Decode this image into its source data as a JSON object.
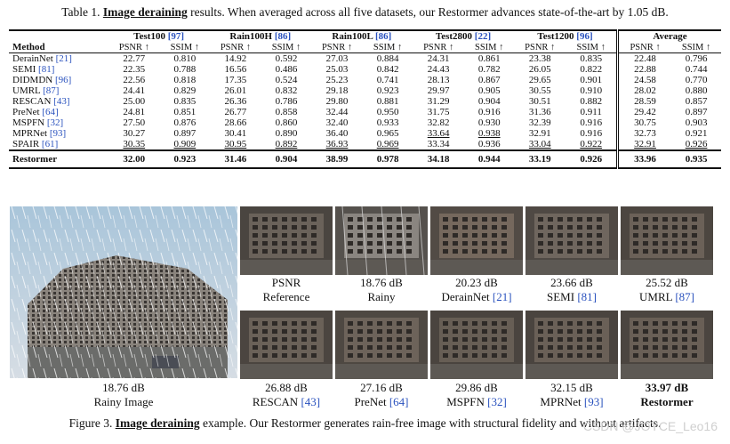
{
  "top_caption": {
    "prefix": "Table 1. ",
    "highlight": "Image deraining",
    "rest": " results. When averaged across all five datasets, our Restormer advances state-of-the-art by 1.05 dB."
  },
  "table": {
    "method_header": "Method",
    "groups": [
      "Test100",
      "Rain100H",
      "Rain100L",
      "Test2800",
      "Test1200",
      "Average"
    ],
    "group_cites": [
      "[97]",
      "[86]",
      "[86]",
      "[22]",
      "[96]",
      ""
    ],
    "sub_psnr": "PSNR ↑",
    "sub_ssim": "SSIM ↑",
    "rows": [
      {
        "method": "DerainNet",
        "cite": "[21]",
        "vals": [
          "22.77",
          "0.810",
          "14.92",
          "0.592",
          "27.03",
          "0.884",
          "24.31",
          "0.861",
          "23.38",
          "0.835",
          "22.48",
          "0.796"
        ]
      },
      {
        "method": "SEMI",
        "cite": "[81]",
        "vals": [
          "22.35",
          "0.788",
          "16.56",
          "0.486",
          "25.03",
          "0.842",
          "24.43",
          "0.782",
          "26.05",
          "0.822",
          "22.88",
          "0.744"
        ]
      },
      {
        "method": "DIDMDN",
        "cite": "[96]",
        "vals": [
          "22.56",
          "0.818",
          "17.35",
          "0.524",
          "25.23",
          "0.741",
          "28.13",
          "0.867",
          "29.65",
          "0.901",
          "24.58",
          "0.770"
        ]
      },
      {
        "method": "UMRL",
        "cite": "[87]",
        "vals": [
          "24.41",
          "0.829",
          "26.01",
          "0.832",
          "29.18",
          "0.923",
          "29.97",
          "0.905",
          "30.55",
          "0.910",
          "28.02",
          "0.880"
        ]
      },
      {
        "method": "RESCAN",
        "cite": "[43]",
        "vals": [
          "25.00",
          "0.835",
          "26.36",
          "0.786",
          "29.80",
          "0.881",
          "31.29",
          "0.904",
          "30.51",
          "0.882",
          "28.59",
          "0.857"
        ]
      },
      {
        "method": "PreNet",
        "cite": "[64]",
        "vals": [
          "24.81",
          "0.851",
          "26.77",
          "0.858",
          "32.44",
          "0.950",
          "31.75",
          "0.916",
          "31.36",
          "0.911",
          "29.42",
          "0.897"
        ]
      },
      {
        "method": "MSPFN",
        "cite": "[32]",
        "vals": [
          "27.50",
          "0.876",
          "28.66",
          "0.860",
          "32.40",
          "0.933",
          "32.82",
          "0.930",
          "32.39",
          "0.916",
          "30.75",
          "0.903"
        ]
      },
      {
        "method": "MPRNet",
        "cite": "[93]",
        "vals": [
          "30.27",
          "0.897",
          "30.41",
          "0.890",
          "36.40",
          "0.965",
          "33.64",
          "0.938",
          "32.91",
          "0.916",
          "32.73",
          "0.921"
        ]
      },
      {
        "method": "SPAIR",
        "cite": "[61]",
        "vals": [
          "30.35",
          "0.909",
          "30.95",
          "0.892",
          "36.93",
          "0.969",
          "33.34",
          "0.936",
          "33.04",
          "0.922",
          "32.91",
          "0.926"
        ]
      }
    ],
    "restormer": {
      "method": "Restormer",
      "vals": [
        "32.00",
        "0.923",
        "31.46",
        "0.904",
        "38.99",
        "0.978",
        "34.18",
        "0.944",
        "33.19",
        "0.926",
        "33.96",
        "0.935"
      ]
    }
  },
  "figure": {
    "big_label_value": "18.76 dB",
    "big_label_name": "Rainy Image",
    "top_row": [
      {
        "value": "PSNR",
        "name": "Reference",
        "cite": ""
      },
      {
        "value": "18.76 dB",
        "name": "Rainy",
        "cite": ""
      },
      {
        "value": "20.23 dB",
        "name": "DerainNet ",
        "cite": "[21]"
      },
      {
        "value": "23.66 dB",
        "name": "SEMI ",
        "cite": "[81]"
      },
      {
        "value": "25.52 dB",
        "name": "UMRL ",
        "cite": "[87]"
      }
    ],
    "bottom_row": [
      {
        "value": "26.88 dB",
        "name": "RESCAN ",
        "cite": "[43]"
      },
      {
        "value": "27.16 dB",
        "name": "PreNet ",
        "cite": "[64]"
      },
      {
        "value": "29.86 dB",
        "name": "MSPFN ",
        "cite": "[32]"
      },
      {
        "value": "32.15 dB",
        "name": "MPRNet ",
        "cite": "[93]"
      },
      {
        "value": "33.97 dB",
        "name": "Restormer",
        "cite": ""
      }
    ]
  },
  "bottom_caption": {
    "prefix": "Figure 3. ",
    "highlight": "Image deraining",
    "rest": " example. Our Restormer generates rain-free image with structural fidelity and without artifacts."
  },
  "watermark": "CSDN @JOYCE_Leo16"
}
